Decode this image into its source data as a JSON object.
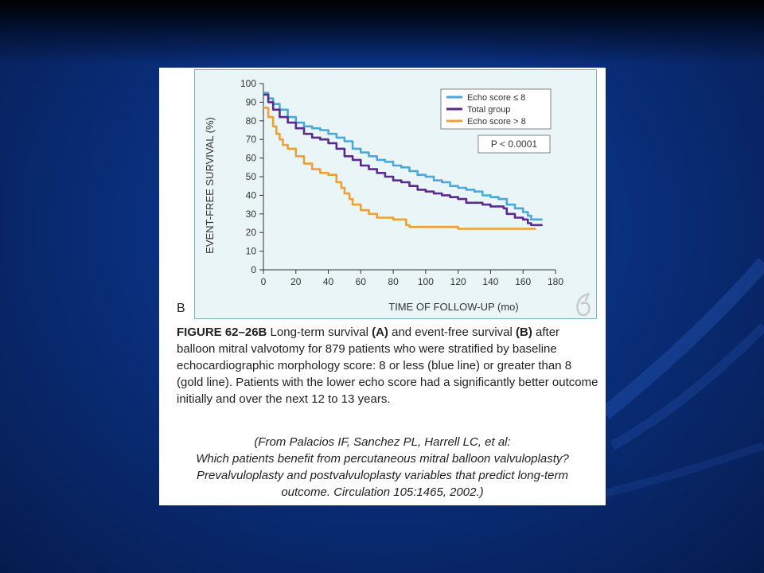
{
  "figure": {
    "panel_letter": "B",
    "caption": {
      "label": "FIGURE 62–26B",
      "t1": " Long-term survival ",
      "a": "(A)",
      "t2": " and event-free survival ",
      "b": "(B)",
      "t3": " after balloon mitral valvotomy for 879 patients who were stratified by baseline echocardiographic morphology score: 8 or less (blue line) or greater than 8 (gold line). Patients with the lower echo score had a significantly better outcome initially and over the next 12 to 13 years."
    },
    "source_lines": [
      "(From Palacios IF, Sanchez PL, Harrell LC, et al:",
      "Which patients benefit from percutaneous mitral balloon valvuloplasty?",
      "Prevalvuloplasty and postvalvuloplasty variables that predict long-term",
      "outcome. Circulation 105:1465, 2002.)"
    ]
  },
  "colors": {
    "echo_low": "#4aa9d8",
    "total": "#5a2a8f",
    "echo_high": "#f0a030"
  },
  "chart_data": {
    "type": "line",
    "xlabel": "TIME OF FOLLOW-UP (mo)",
    "ylabel": "EVENT-FREE SURVIVAL (%)",
    "xlim": [
      0,
      180
    ],
    "ylim": [
      0,
      100
    ],
    "xticks": [
      0,
      20,
      40,
      60,
      80,
      100,
      120,
      140,
      160,
      180
    ],
    "yticks": [
      0,
      10,
      20,
      30,
      40,
      50,
      60,
      70,
      80,
      90,
      100
    ],
    "grid": false,
    "legend_position": "top-right",
    "annotation": "P < 0.0001",
    "series": [
      {
        "name": "Echo score ≤ 8",
        "points": [
          [
            0,
            95
          ],
          [
            3,
            92
          ],
          [
            6,
            89
          ],
          [
            10,
            86
          ],
          [
            15,
            82
          ],
          [
            20,
            79
          ],
          [
            25,
            77
          ],
          [
            30,
            76
          ],
          [
            35,
            75
          ],
          [
            40,
            73
          ],
          [
            45,
            71
          ],
          [
            50,
            69
          ],
          [
            55,
            65
          ],
          [
            60,
            63
          ],
          [
            65,
            61
          ],
          [
            70,
            59
          ],
          [
            75,
            58
          ],
          [
            80,
            56
          ],
          [
            85,
            55
          ],
          [
            90,
            53
          ],
          [
            95,
            51
          ],
          [
            100,
            50
          ],
          [
            105,
            48
          ],
          [
            110,
            47
          ],
          [
            115,
            45
          ],
          [
            120,
            44
          ],
          [
            125,
            43
          ],
          [
            130,
            42
          ],
          [
            135,
            40
          ],
          [
            140,
            39
          ],
          [
            145,
            38
          ],
          [
            148,
            38
          ],
          [
            150,
            35
          ],
          [
            155,
            33
          ],
          [
            160,
            31
          ],
          [
            163,
            29
          ],
          [
            165,
            27
          ],
          [
            172,
            27
          ]
        ]
      },
      {
        "name": "Total group",
        "points": [
          [
            0,
            94
          ],
          [
            3,
            90
          ],
          [
            6,
            86
          ],
          [
            10,
            82
          ],
          [
            15,
            79
          ],
          [
            20,
            76
          ],
          [
            25,
            73
          ],
          [
            30,
            71
          ],
          [
            35,
            70
          ],
          [
            40,
            68
          ],
          [
            45,
            65
          ],
          [
            50,
            61
          ],
          [
            55,
            59
          ],
          [
            60,
            56
          ],
          [
            65,
            54
          ],
          [
            70,
            52
          ],
          [
            75,
            50
          ],
          [
            80,
            48
          ],
          [
            85,
            47
          ],
          [
            90,
            45
          ],
          [
            95,
            43
          ],
          [
            100,
            42
          ],
          [
            105,
            41
          ],
          [
            110,
            40
          ],
          [
            115,
            39
          ],
          [
            120,
            38
          ],
          [
            125,
            36
          ],
          [
            130,
            36
          ],
          [
            135,
            35
          ],
          [
            140,
            34
          ],
          [
            145,
            34
          ],
          [
            148,
            33
          ],
          [
            150,
            30
          ],
          [
            155,
            28
          ],
          [
            160,
            27
          ],
          [
            163,
            25
          ],
          [
            165,
            24
          ],
          [
            172,
            24
          ]
        ]
      },
      {
        "name": "Echo score > 8",
        "points": [
          [
            0,
            87
          ],
          [
            3,
            82
          ],
          [
            6,
            77
          ],
          [
            8,
            73
          ],
          [
            10,
            70
          ],
          [
            12,
            67
          ],
          [
            15,
            65
          ],
          [
            20,
            61
          ],
          [
            25,
            57
          ],
          [
            30,
            54
          ],
          [
            35,
            52
          ],
          [
            40,
            51
          ],
          [
            45,
            47
          ],
          [
            48,
            44
          ],
          [
            50,
            41
          ],
          [
            53,
            38
          ],
          [
            55,
            35
          ],
          [
            60,
            32
          ],
          [
            65,
            30
          ],
          [
            70,
            28
          ],
          [
            75,
            28
          ],
          [
            80,
            27
          ],
          [
            85,
            27
          ],
          [
            88,
            24
          ],
          [
            90,
            23
          ],
          [
            100,
            23
          ],
          [
            110,
            23
          ],
          [
            120,
            22
          ],
          [
            130,
            22
          ],
          [
            140,
            22
          ],
          [
            150,
            22
          ],
          [
            160,
            22
          ],
          [
            165,
            22
          ],
          [
            168,
            22
          ]
        ]
      }
    ]
  }
}
